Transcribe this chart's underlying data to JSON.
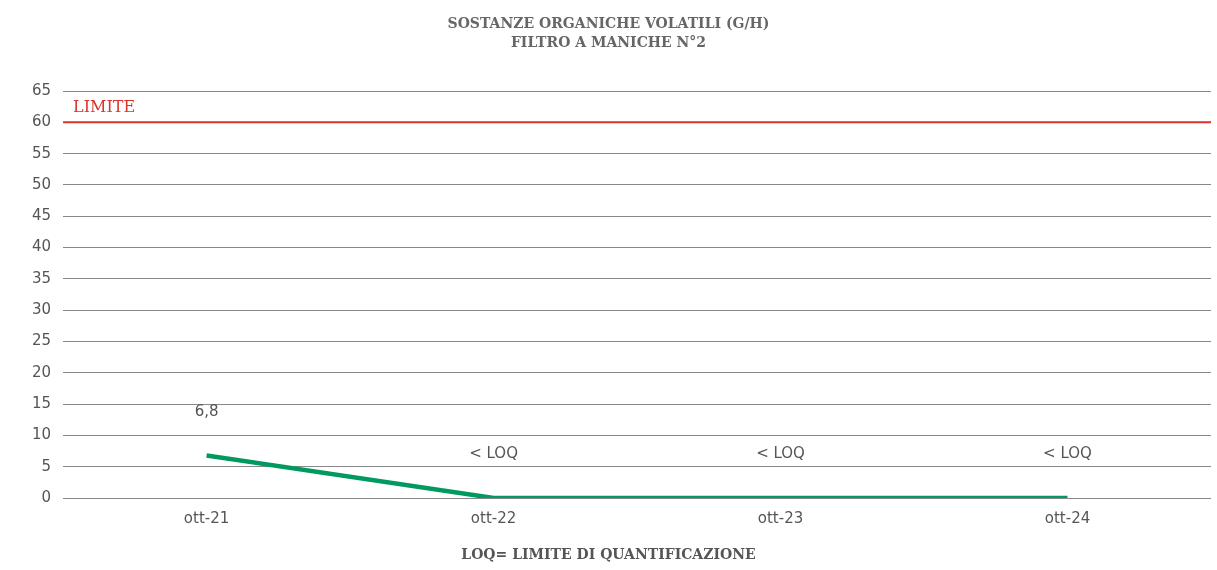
{
  "chart_data": {
    "type": "line",
    "title": "SOSTANZE ORGANICHE VOLATILI (G/H)",
    "subtitle": "FILTRO A MANICHE N°2",
    "categories": [
      "ott-21",
      "ott-22",
      "ott-23",
      "ott-24"
    ],
    "series": [
      {
        "color": "#009960",
        "values": [
          6.8,
          0,
          0,
          0
        ],
        "value_labels": [
          "6,8",
          "< LOQ",
          "< LOQ",
          "< LOQ"
        ]
      }
    ],
    "ylim": [
      0,
      65
    ],
    "yticks": [
      0,
      5,
      10,
      15,
      20,
      25,
      30,
      35,
      40,
      45,
      50,
      55,
      60,
      65
    ],
    "grid": "y",
    "legend": false,
    "marker": "none",
    "line_style": "solid",
    "ref_lines": [
      {
        "axis": "y",
        "value": 60,
        "label": "LIMITE",
        "color": "#d9332b"
      }
    ],
    "annotations": [
      "LOQ= LIMITE DI QUANTIFICAZIONE"
    ]
  }
}
